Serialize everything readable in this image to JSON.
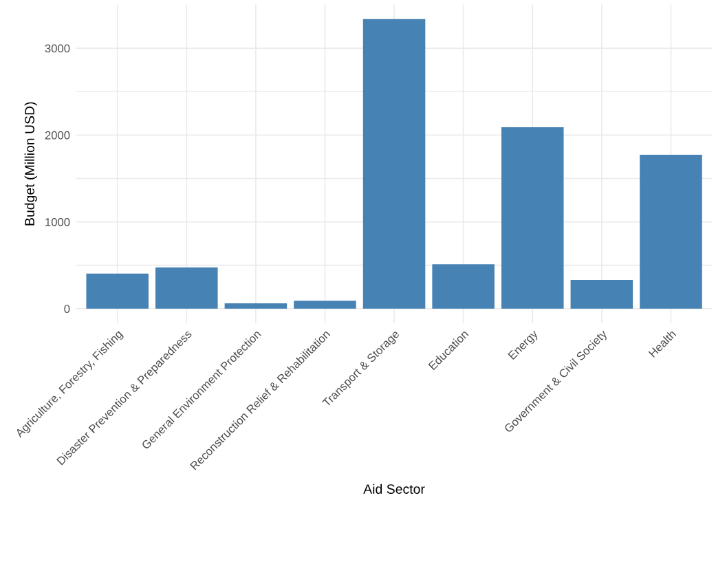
{
  "chart_data": {
    "type": "bar",
    "xlabel": "Aid Sector",
    "ylabel": "Budget (Million USD)",
    "categories": [
      "Agriculture, Forestry, Fishing",
      "Disaster Prevention & Preparedness",
      "General Environment Protection",
      "Reconstruction Relief & Rehabilitation",
      "Transport & Storage",
      "Education",
      "Energy",
      "Government & Civil Society",
      "Health"
    ],
    "values": [
      404,
      475,
      61,
      92,
      3337,
      511,
      2090,
      332,
      1773
    ],
    "color": "#4682b4",
    "ylim": [
      -167,
      3504
    ],
    "yticks": [
      0,
      {
        "value": 500,
        "label": null
      },
      1000,
      {
        "value": 1500,
        "label": null
      },
      2000,
      {
        "value": 2500,
        "label": null
      },
      3000
    ],
    "grid": true
  }
}
